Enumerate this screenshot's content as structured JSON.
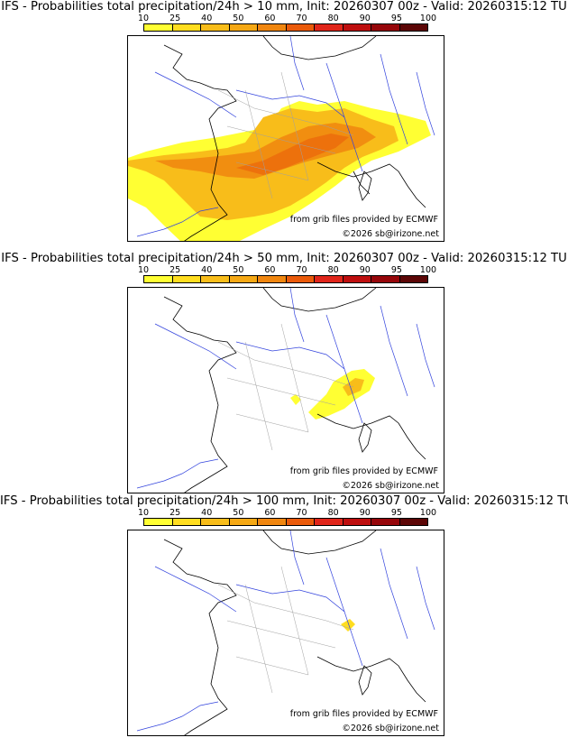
{
  "colorbar": {
    "ticks": [
      "10",
      "25",
      "40",
      "50",
      "60",
      "70",
      "80",
      "90",
      "95",
      "100"
    ],
    "colors": [
      "#ffff33",
      "#ffdd1f",
      "#f8bd1a",
      "#f5a814",
      "#f0860f",
      "#ea5a0a",
      "#e0251a",
      "#be0e0e",
      "#96060a",
      "#5c0606"
    ]
  },
  "panels": [
    {
      "title": "IFS - Probabilities total precipitation/24h > 10 mm, Init: 20260307 00z - Valid: 20260315:12 TU",
      "credit_source": "from grib files provided by ECMWF",
      "credit_copyright": "©2026 sb@irizone.net",
      "threshold_mm": 10
    },
    {
      "title": "IFS - Probabilities total precipitation/24h > 50 mm, Init: 20260307 00z - Valid: 20260315:12 TU",
      "credit_source": "from grib files provided by ECMWF",
      "credit_copyright": "©2026 sb@irizone.net",
      "threshold_mm": 50
    },
    {
      "title": "IFS - Probabilities total precipitation/24h > 100 mm, Init: 20260307 00z - Valid: 20260315:12 TU",
      "credit_source": "from grib files provided by ECMWF",
      "credit_copyright": "©2026 sb@irizone.net",
      "threshold_mm": 100
    }
  ]
}
